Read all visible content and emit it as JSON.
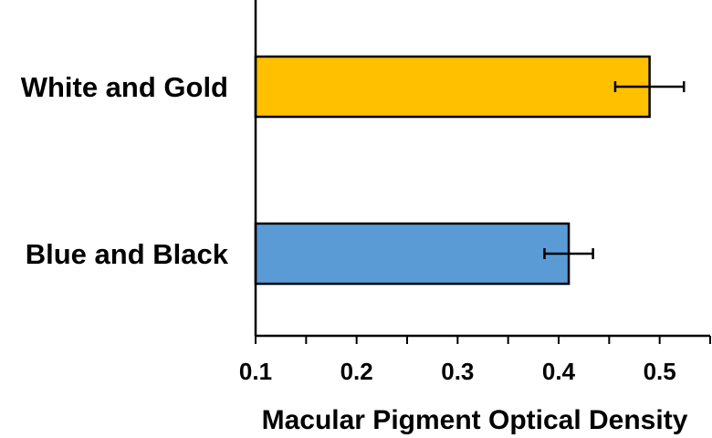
{
  "chart_data": {
    "type": "bar",
    "orientation": "horizontal",
    "categories": [
      "White and Gold",
      "Blue and Black"
    ],
    "values": [
      0.49,
      0.41
    ],
    "errors": [
      0.034,
      0.024
    ],
    "colors": [
      "#FFC000",
      "#5B9BD5"
    ],
    "xlabel": "Macular Pigment Optical Density",
    "ylabel": "",
    "xlim": [
      0.1,
      0.55
    ],
    "xticks": [
      0.1,
      0.2,
      0.3,
      0.4,
      0.5
    ],
    "xtick_labels": [
      "0.1",
      "0.2",
      "0.3",
      "0.4",
      "0.5"
    ],
    "grid": false,
    "legend": "none"
  }
}
